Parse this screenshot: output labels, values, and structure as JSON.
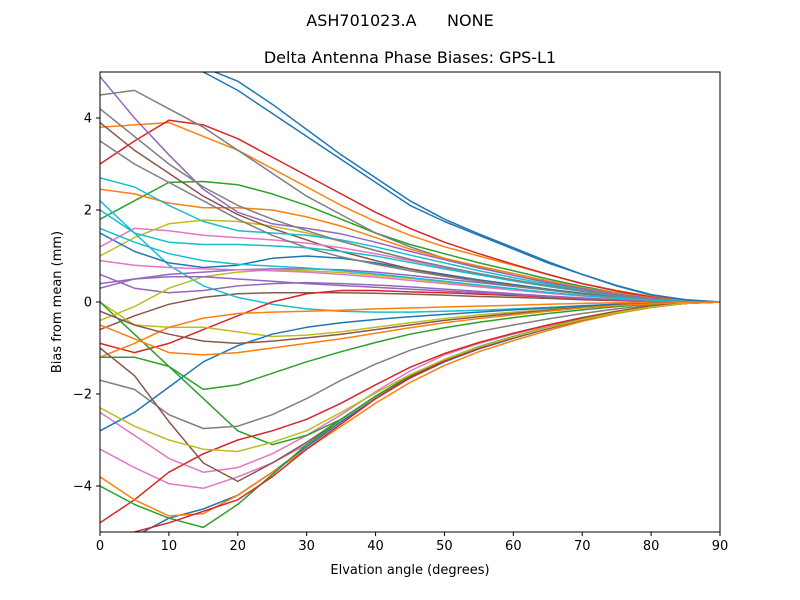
{
  "chart_data": {
    "type": "line",
    "suptitle": "ASH701023.A      NONE",
    "title": "Delta Antenna Phase Biases: GPS-L1",
    "xlabel": "Elvation angle (degrees)",
    "ylabel": "Bias from mean (mm)",
    "xlim": [
      0,
      90
    ],
    "ylim": [
      -5,
      5
    ],
    "xticks": [
      "0",
      "10",
      "20",
      "30",
      "40",
      "50",
      "60",
      "70",
      "80",
      "90"
    ],
    "yticks": [
      "−4",
      "−2",
      "0",
      "2",
      "4"
    ],
    "grid": false,
    "x": [
      0,
      5,
      10,
      15,
      20,
      25,
      30,
      35,
      40,
      45,
      50,
      55,
      60,
      65,
      70,
      75,
      80,
      85,
      90
    ],
    "palette": [
      "#1f77b4",
      "#ff7f0e",
      "#2ca02c",
      "#d62728",
      "#9467bd",
      "#8c564b",
      "#e377c2",
      "#7f7f7f",
      "#bcbd22",
      "#17becf"
    ],
    "series": [
      {
        "values": [
          5.6,
          5.4,
          5.2,
          5.0,
          4.6,
          4.1,
          3.6,
          3.1,
          2.6,
          2.1,
          1.75,
          1.45,
          1.15,
          0.85,
          0.6,
          0.35,
          0.15,
          0.05,
          0
        ]
      },
      {
        "values": [
          3.8,
          3.85,
          3.9,
          3.6,
          3.3,
          2.9,
          2.5,
          2.1,
          1.75,
          1.45,
          1.2,
          1.0,
          0.8,
          0.6,
          0.4,
          0.25,
          0.12,
          0.04,
          0
        ]
      },
      {
        "values": [
          1.8,
          2.2,
          2.6,
          2.62,
          2.55,
          2.35,
          2.1,
          1.8,
          1.5,
          1.25,
          1.05,
          0.85,
          0.68,
          0.5,
          0.34,
          0.2,
          0.1,
          0.03,
          0
        ]
      },
      {
        "values": [
          3.0,
          3.5,
          3.95,
          3.85,
          3.55,
          3.15,
          2.75,
          2.35,
          1.95,
          1.6,
          1.3,
          1.05,
          0.82,
          0.6,
          0.4,
          0.24,
          0.11,
          0.03,
          0
        ]
      },
      {
        "values": [
          0.4,
          0.5,
          0.6,
          0.65,
          0.7,
          0.72,
          0.72,
          0.7,
          0.65,
          0.58,
          0.5,
          0.42,
          0.34,
          0.26,
          0.18,
          0.11,
          0.05,
          0.02,
          0
        ]
      },
      {
        "values": [
          -0.6,
          -0.3,
          -0.05,
          0.1,
          0.18,
          0.2,
          0.2,
          0.2,
          0.19,
          0.17,
          0.15,
          0.12,
          0.1,
          0.08,
          0.05,
          0.03,
          0.01,
          0.0,
          0
        ]
      },
      {
        "values": [
          -2.4,
          -2.9,
          -3.4,
          -3.7,
          -3.6,
          -3.3,
          -2.9,
          -2.45,
          -1.95,
          -1.5,
          -1.15,
          -0.9,
          -0.7,
          -0.52,
          -0.36,
          -0.22,
          -0.1,
          -0.03,
          0
        ]
      },
      {
        "values": [
          4.5,
          4.6,
          4.2,
          3.8,
          3.3,
          2.8,
          2.3,
          1.9,
          1.5,
          1.2,
          0.95,
          0.75,
          0.58,
          0.42,
          0.28,
          0.17,
          0.08,
          0.02,
          0
        ]
      },
      {
        "values": [
          1.0,
          1.4,
          1.7,
          1.78,
          1.75,
          1.65,
          1.5,
          1.32,
          1.12,
          0.92,
          0.75,
          0.6,
          0.46,
          0.34,
          0.23,
          0.13,
          0.06,
          0.02,
          0
        ]
      },
      {
        "values": [
          2.2,
          1.5,
          0.8,
          0.35,
          0.1,
          -0.05,
          -0.15,
          -0.2,
          -0.22,
          -0.22,
          -0.2,
          -0.18,
          -0.15,
          -0.12,
          -0.08,
          -0.05,
          -0.02,
          -0.01,
          0
        ]
      },
      {
        "values": [
          1.5,
          1.1,
          0.85,
          0.75,
          0.8,
          0.95,
          1.0,
          0.95,
          0.85,
          0.72,
          0.6,
          0.48,
          0.38,
          0.28,
          0.19,
          0.11,
          0.05,
          0.01,
          0
        ]
      },
      {
        "values": [
          2.45,
          2.35,
          2.15,
          2.05,
          2.05,
          2.0,
          1.85,
          1.65,
          1.4,
          1.15,
          0.95,
          0.78,
          0.62,
          0.46,
          0.31,
          0.19,
          0.09,
          0.03,
          0
        ]
      },
      {
        "values": [
          -1.2,
          -1.2,
          -1.4,
          -2.1,
          -2.8,
          -3.1,
          -2.9,
          -2.55,
          -2.05,
          -1.6,
          -1.25,
          -0.98,
          -0.76,
          -0.56,
          -0.38,
          -0.23,
          -0.11,
          -0.03,
          0
        ]
      },
      {
        "values": [
          -0.9,
          -1.1,
          -0.9,
          -0.6,
          -0.3,
          0.0,
          0.18,
          0.25,
          0.25,
          0.22,
          0.2,
          0.17,
          0.14,
          0.11,
          0.07,
          0.04,
          0.02,
          0.01,
          0
        ]
      },
      {
        "values": [
          0.6,
          0.3,
          0.2,
          0.25,
          0.35,
          0.4,
          0.42,
          0.4,
          0.37,
          0.33,
          0.28,
          0.23,
          0.18,
          0.13,
          0.09,
          0.05,
          0.02,
          0.01,
          0
        ]
      },
      {
        "values": [
          3.9,
          3.3,
          2.8,
          2.3,
          1.9,
          1.6,
          1.35,
          1.1,
          0.9,
          0.72,
          0.58,
          0.46,
          0.36,
          0.26,
          0.18,
          0.1,
          0.05,
          0.01,
          0
        ]
      },
      {
        "values": [
          -3.2,
          -3.6,
          -3.95,
          -4.05,
          -3.8,
          -3.5,
          -3.1,
          -2.6,
          -2.1,
          -1.65,
          -1.3,
          -1.0,
          -0.78,
          -0.58,
          -0.4,
          -0.24,
          -0.11,
          -0.03,
          0
        ]
      },
      {
        "values": [
          -1.7,
          -1.9,
          -2.45,
          -2.75,
          -2.7,
          -2.45,
          -2.1,
          -1.7,
          -1.35,
          -1.05,
          -0.82,
          -0.64,
          -0.5,
          -0.37,
          -0.25,
          -0.15,
          -0.07,
          -0.02,
          0
        ]
      },
      {
        "values": [
          0.0,
          -0.5,
          -0.55,
          -0.55,
          -0.65,
          -0.75,
          -0.72,
          -0.65,
          -0.55,
          -0.45,
          -0.36,
          -0.28,
          -0.22,
          -0.16,
          -0.11,
          -0.06,
          -0.03,
          -0.01,
          0
        ]
      },
      {
        "values": [
          2.7,
          2.5,
          2.1,
          1.75,
          1.55,
          1.5,
          1.45,
          1.35,
          1.2,
          1.02,
          0.85,
          0.68,
          0.53,
          0.39,
          0.26,
          0.15,
          0.07,
          0.02,
          0
        ]
      },
      {
        "values": [
          -2.8,
          -2.4,
          -1.85,
          -1.3,
          -0.95,
          -0.7,
          -0.55,
          -0.45,
          -0.38,
          -0.32,
          -0.27,
          -0.22,
          -0.17,
          -0.13,
          -0.09,
          -0.05,
          -0.02,
          -0.01,
          0
        ]
      },
      {
        "values": [
          -1.2,
          -0.9,
          -0.55,
          -0.35,
          -0.25,
          -0.22,
          -0.2,
          -0.18,
          -0.15,
          -0.13,
          -0.11,
          -0.09,
          -0.07,
          -0.05,
          -0.03,
          -0.02,
          -0.01,
          0.0,
          0
        ]
      },
      {
        "values": [
          0.0,
          -0.7,
          -1.4,
          -1.9,
          -1.8,
          -1.55,
          -1.3,
          -1.08,
          -0.88,
          -0.7,
          -0.56,
          -0.44,
          -0.34,
          -0.25,
          -0.17,
          -0.1,
          -0.05,
          -0.01,
          0
        ]
      },
      {
        "values": [
          -4.8,
          -4.3,
          -3.7,
          -3.3,
          -3.0,
          -2.8,
          -2.55,
          -2.2,
          -1.8,
          -1.42,
          -1.12,
          -0.88,
          -0.68,
          -0.5,
          -0.34,
          -0.2,
          -0.09,
          -0.02,
          0
        ]
      },
      {
        "values": [
          4.9,
          4.0,
          3.2,
          2.45,
          1.95,
          1.7,
          1.6,
          1.48,
          1.3,
          1.1,
          0.92,
          0.74,
          0.58,
          0.43,
          0.29,
          0.17,
          0.08,
          0.02,
          0
        ]
      },
      {
        "values": [
          -1.0,
          -1.6,
          -2.6,
          -3.5,
          -3.9,
          -3.5,
          -3.05,
          -2.55,
          -2.05,
          -1.62,
          -1.28,
          -1.0,
          -0.77,
          -0.57,
          -0.39,
          -0.23,
          -0.11,
          -0.03,
          0
        ]
      },
      {
        "values": [
          1.2,
          1.6,
          1.55,
          1.45,
          1.4,
          1.35,
          1.28,
          1.18,
          1.05,
          0.9,
          0.75,
          0.61,
          0.48,
          0.35,
          0.24,
          0.14,
          0.06,
          0.02,
          0
        ]
      },
      {
        "values": [
          3.5,
          3.0,
          2.6,
          2.2,
          1.8,
          1.45,
          1.18,
          0.98,
          0.82,
          0.68,
          0.56,
          0.45,
          0.35,
          0.26,
          0.17,
          0.1,
          0.05,
          0.01,
          0
        ]
      },
      {
        "values": [
          -0.4,
          -0.1,
          0.3,
          0.55,
          0.65,
          0.7,
          0.68,
          0.64,
          0.58,
          0.51,
          0.43,
          0.35,
          0.28,
          0.21,
          0.14,
          0.08,
          0.04,
          0.01,
          0
        ]
      },
      {
        "values": [
          2.0,
          1.5,
          1.3,
          1.25,
          1.25,
          1.22,
          1.18,
          1.1,
          1.0,
          0.86,
          0.72,
          0.59,
          0.46,
          0.34,
          0.23,
          0.13,
          0.06,
          0.02,
          0
        ]
      },
      {
        "values": [
          -5.4,
          -5.1,
          -4.7,
          -4.5,
          -4.2,
          -3.7,
          -3.15,
          -2.6,
          -2.1,
          -1.65,
          -1.3,
          -1.02,
          -0.79,
          -0.58,
          -0.4,
          -0.24,
          -0.11,
          -0.03,
          0
        ]
      },
      {
        "values": [
          -3.8,
          -4.3,
          -4.65,
          -4.6,
          -4.2,
          -3.7,
          -3.2,
          -2.7,
          -2.2,
          -1.75,
          -1.38,
          -1.08,
          -0.84,
          -0.62,
          -0.42,
          -0.25,
          -0.12,
          -0.03,
          0
        ]
      },
      {
        "values": [
          -4.0,
          -4.4,
          -4.7,
          -4.9,
          -4.4,
          -3.75,
          -3.1,
          -2.55,
          -2.05,
          -1.6,
          -1.25,
          -0.97,
          -0.75,
          -0.55,
          -0.37,
          -0.22,
          -0.1,
          -0.03,
          0
        ]
      },
      {
        "values": [
          -5.2,
          -5.0,
          -4.8,
          -4.55,
          -4.3,
          -3.8,
          -3.2,
          -2.65,
          -2.1,
          -1.65,
          -1.28,
          -1.0,
          -0.77,
          -0.57,
          -0.39,
          -0.23,
          -0.11,
          -0.03,
          0
        ]
      },
      {
        "values": [
          0.3,
          0.5,
          0.55,
          0.55,
          0.5,
          0.45,
          0.4,
          0.36,
          0.32,
          0.28,
          0.24,
          0.2,
          0.16,
          0.12,
          0.08,
          0.05,
          0.02,
          0.01,
          0
        ]
      },
      {
        "values": [
          -0.2,
          -0.5,
          -0.7,
          -0.85,
          -0.9,
          -0.85,
          -0.78,
          -0.7,
          -0.6,
          -0.5,
          -0.4,
          -0.32,
          -0.25,
          -0.18,
          -0.12,
          -0.07,
          -0.03,
          -0.01,
          0
        ]
      },
      {
        "values": [
          0.9,
          0.8,
          0.75,
          0.72,
          0.7,
          0.68,
          0.65,
          0.6,
          0.54,
          0.47,
          0.4,
          0.33,
          0.26,
          0.19,
          0.13,
          0.08,
          0.04,
          0.01,
          0
        ]
      },
      {
        "values": [
          4.2,
          3.6,
          3.0,
          2.5,
          2.1,
          1.8,
          1.55,
          1.32,
          1.12,
          0.93,
          0.77,
          0.62,
          0.48,
          0.36,
          0.24,
          0.14,
          0.07,
          0.02,
          0
        ]
      },
      {
        "values": [
          -2.3,
          -2.7,
          -3.0,
          -3.2,
          -3.25,
          -3.05,
          -2.8,
          -2.4,
          -1.98,
          -1.58,
          -1.25,
          -0.98,
          -0.76,
          -0.56,
          -0.38,
          -0.23,
          -0.11,
          -0.03,
          0
        ]
      },
      {
        "values": [
          1.6,
          1.3,
          1.05,
          0.9,
          0.82,
          0.78,
          0.74,
          0.68,
          0.61,
          0.53,
          0.45,
          0.37,
          0.29,
          0.21,
          0.14,
          0.08,
          0.04,
          0.01,
          0
        ]
      },
      {
        "values": [
          5.6,
          5.5,
          5.3,
          5.1,
          4.8,
          4.3,
          3.75,
          3.2,
          2.7,
          2.2,
          1.8,
          1.48,
          1.18,
          0.88,
          0.6,
          0.36,
          0.16,
          0.05,
          0
        ]
      },
      {
        "values": [
          -0.5,
          -0.8,
          -1.1,
          -1.15,
          -1.1,
          -1.0,
          -0.9,
          -0.8,
          -0.68,
          -0.56,
          -0.45,
          -0.36,
          -0.28,
          -0.2,
          -0.13,
          -0.08,
          -0.04,
          -0.01,
          0
        ]
      }
    ]
  }
}
